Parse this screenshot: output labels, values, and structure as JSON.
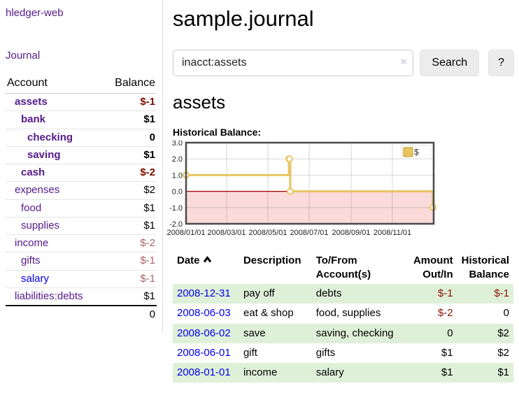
{
  "app": {
    "title": "hledger-web"
  },
  "colors": {
    "link_purple": "#551a8b",
    "link_blue": "#0000ee",
    "negative_strong": "#7d0b00",
    "negative_soft": "#a96565",
    "row_stripe_green": "#dff0d8",
    "series_gold": "#e9c462"
  },
  "sidebar": {
    "journal_link": "Journal",
    "headers": {
      "account": "Account",
      "balance": "Balance"
    },
    "accounts": [
      {
        "account": "assets",
        "indent": 1,
        "bold": true,
        "balance": "$-1",
        "neg": "strong",
        "blue": false
      },
      {
        "account": "bank",
        "indent": 2,
        "bold": true,
        "balance": "$1",
        "neg": null,
        "blue": false
      },
      {
        "account": "checking",
        "indent": 3,
        "bold": true,
        "balance": "0",
        "neg": null,
        "blue": false
      },
      {
        "account": "saving",
        "indent": 3,
        "bold": true,
        "balance": "$1",
        "neg": null,
        "blue": false
      },
      {
        "account": "cash",
        "indent": 2,
        "bold": true,
        "balance": "$-2",
        "neg": "strong",
        "blue": false
      },
      {
        "account": "expenses",
        "indent": 1,
        "bold": false,
        "balance": "$2",
        "neg": null,
        "blue": false
      },
      {
        "account": "food",
        "indent": 2,
        "bold": false,
        "balance": "$1",
        "neg": null,
        "blue": false
      },
      {
        "account": "supplies",
        "indent": 2,
        "bold": false,
        "balance": "$1",
        "neg": null,
        "blue": false
      },
      {
        "account": "income",
        "indent": 1,
        "bold": false,
        "balance": "$-2",
        "neg": "soft",
        "blue": false
      },
      {
        "account": "gifts",
        "indent": 2,
        "bold": false,
        "balance": "$-1",
        "neg": "soft",
        "blue": false
      },
      {
        "account": "salary",
        "indent": 2,
        "bold": false,
        "balance": "$-1",
        "neg": "soft",
        "blue": true
      },
      {
        "account": "liabilities:debts",
        "indent": 1,
        "bold": false,
        "balance": "$1",
        "neg": null,
        "blue": false
      }
    ],
    "total": "0"
  },
  "header": {
    "title": "sample.journal"
  },
  "search": {
    "value": "inacct:assets",
    "clear_icon": "×",
    "button_label": "Search",
    "help_label": "?"
  },
  "register": {
    "heading": "assets",
    "chart_label": "Historical Balance:",
    "headers": {
      "date": "Date",
      "description": "Description",
      "accounts": "To/From Account(s)",
      "amount": "Amount Out/In",
      "balance": "Historical Balance"
    },
    "rows": [
      {
        "date": "2008-12-31",
        "description": "pay off",
        "accounts": "debts",
        "amount": "$-1",
        "amount_neg": true,
        "balance": "$-1",
        "balance_neg": true
      },
      {
        "date": "2008-06-03",
        "description": "eat & shop",
        "accounts": "food, supplies",
        "amount": "$-2",
        "amount_neg": true,
        "balance": "0",
        "balance_neg": false
      },
      {
        "date": "2008-06-02",
        "description": "save",
        "accounts": "saving, checking",
        "amount": "0",
        "amount_neg": false,
        "balance": "$2",
        "balance_neg": false
      },
      {
        "date": "2008-06-01",
        "description": "gift",
        "accounts": "gifts",
        "amount": "$1",
        "amount_neg": false,
        "balance": "$2",
        "balance_neg": false
      },
      {
        "date": "2008-01-01",
        "description": "income",
        "accounts": "salary",
        "amount": "$1",
        "amount_neg": false,
        "balance": "$1",
        "balance_neg": false
      }
    ]
  },
  "chart_data": {
    "type": "line",
    "title": "Historical Balance:",
    "step": true,
    "series": [
      {
        "name": "$",
        "color": "#e9c462",
        "points": [
          [
            "2008-01-01",
            1
          ],
          [
            "2008-06-01",
            2
          ],
          [
            "2008-06-02",
            2
          ],
          [
            "2008-06-03",
            0
          ],
          [
            "2008-12-31",
            -1
          ]
        ]
      }
    ],
    "x_range": [
      "2008-01-01",
      "2009-01-01"
    ],
    "x_ticks": [
      "2008/01/01",
      "2008/03/01",
      "2008/05/01",
      "2008/07/01",
      "2008/09/01",
      "2008/11/01"
    ],
    "y_ticks": [
      3.0,
      2.0,
      1.0,
      0.0,
      -1.0,
      -2.0
    ],
    "ylim": [
      -2,
      3
    ],
    "grid": true,
    "legend_position": "top-right",
    "negative_fill": "#fbdada",
    "zero_line_color": "#a40000"
  }
}
